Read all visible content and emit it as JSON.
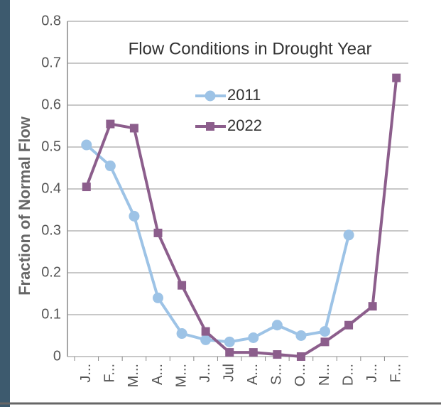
{
  "chart_data": {
    "type": "line",
    "title": "Flow Conditions in Drought Year",
    "y_label": "Fraction of Normal Flow",
    "categories": [
      "J...",
      "F...",
      "M...",
      "A...",
      "M...",
      "J...",
      "Jul",
      "A...",
      "S...",
      "O...",
      "N...",
      "D...",
      "J...",
      "F..."
    ],
    "series": [
      {
        "name": "2011",
        "color": "#9dc3e6",
        "marker": "circle",
        "values": [
          0.505,
          0.455,
          0.335,
          0.14,
          0.055,
          0.04,
          0.035,
          0.045,
          0.075,
          0.05,
          0.06,
          0.29,
          null,
          null
        ]
      },
      {
        "name": "2022",
        "color": "#8c5e8c",
        "marker": "square",
        "values": [
          0.405,
          0.555,
          0.545,
          0.295,
          0.17,
          0.06,
          0.01,
          0.01,
          0.005,
          0.0,
          0.035,
          0.075,
          0.12,
          0.665
        ]
      }
    ],
    "ylim": [
      0,
      0.8
    ],
    "yticks": [
      0,
      0.1,
      0.2,
      0.3,
      0.4,
      0.5,
      0.6,
      0.7,
      0.8
    ],
    "grid": true
  }
}
